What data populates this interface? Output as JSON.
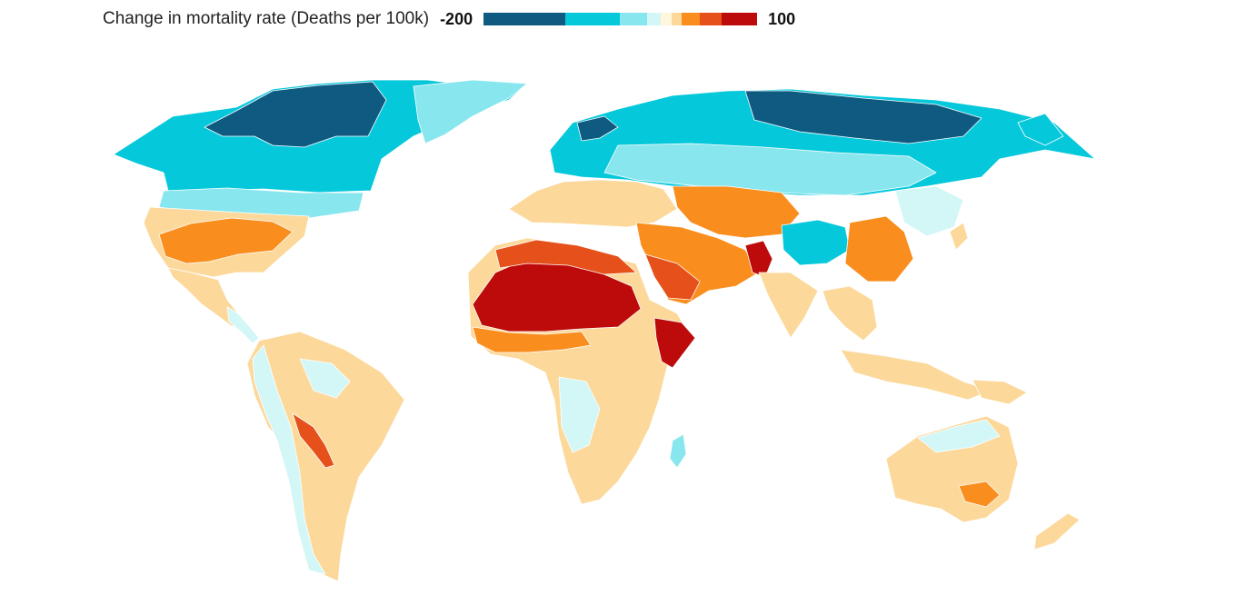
{
  "legend": {
    "title": "Change in mortality rate (Deaths per 100k)",
    "min_label": "-200",
    "max_label": "100",
    "scale": [
      {
        "color": "#0f5a80",
        "span": 3
      },
      {
        "color": "#06c8db",
        "span": 2
      },
      {
        "color": "#88e6ee",
        "span": 1
      },
      {
        "color": "#d3f7f6",
        "span": 0.5
      },
      {
        "color": "#fff6dc",
        "span": 0.4
      },
      {
        "color": "#fcd89a",
        "span": 0.35
      },
      {
        "color": "#f98e1f",
        "span": 0.65
      },
      {
        "color": "#e5501b",
        "span": 0.8
      },
      {
        "color": "#bd0b0b",
        "span": 1.3
      }
    ]
  },
  "colors": {
    "darkblue": "#0f5a80",
    "cyan": "#06c8db",
    "lightblue": "#88e6ee",
    "palecyan": "#d3f7f6",
    "beige": "#fcd89a",
    "orange": "#f98e1f",
    "redorange": "#e5501b",
    "darkred": "#bd0b0b"
  }
}
